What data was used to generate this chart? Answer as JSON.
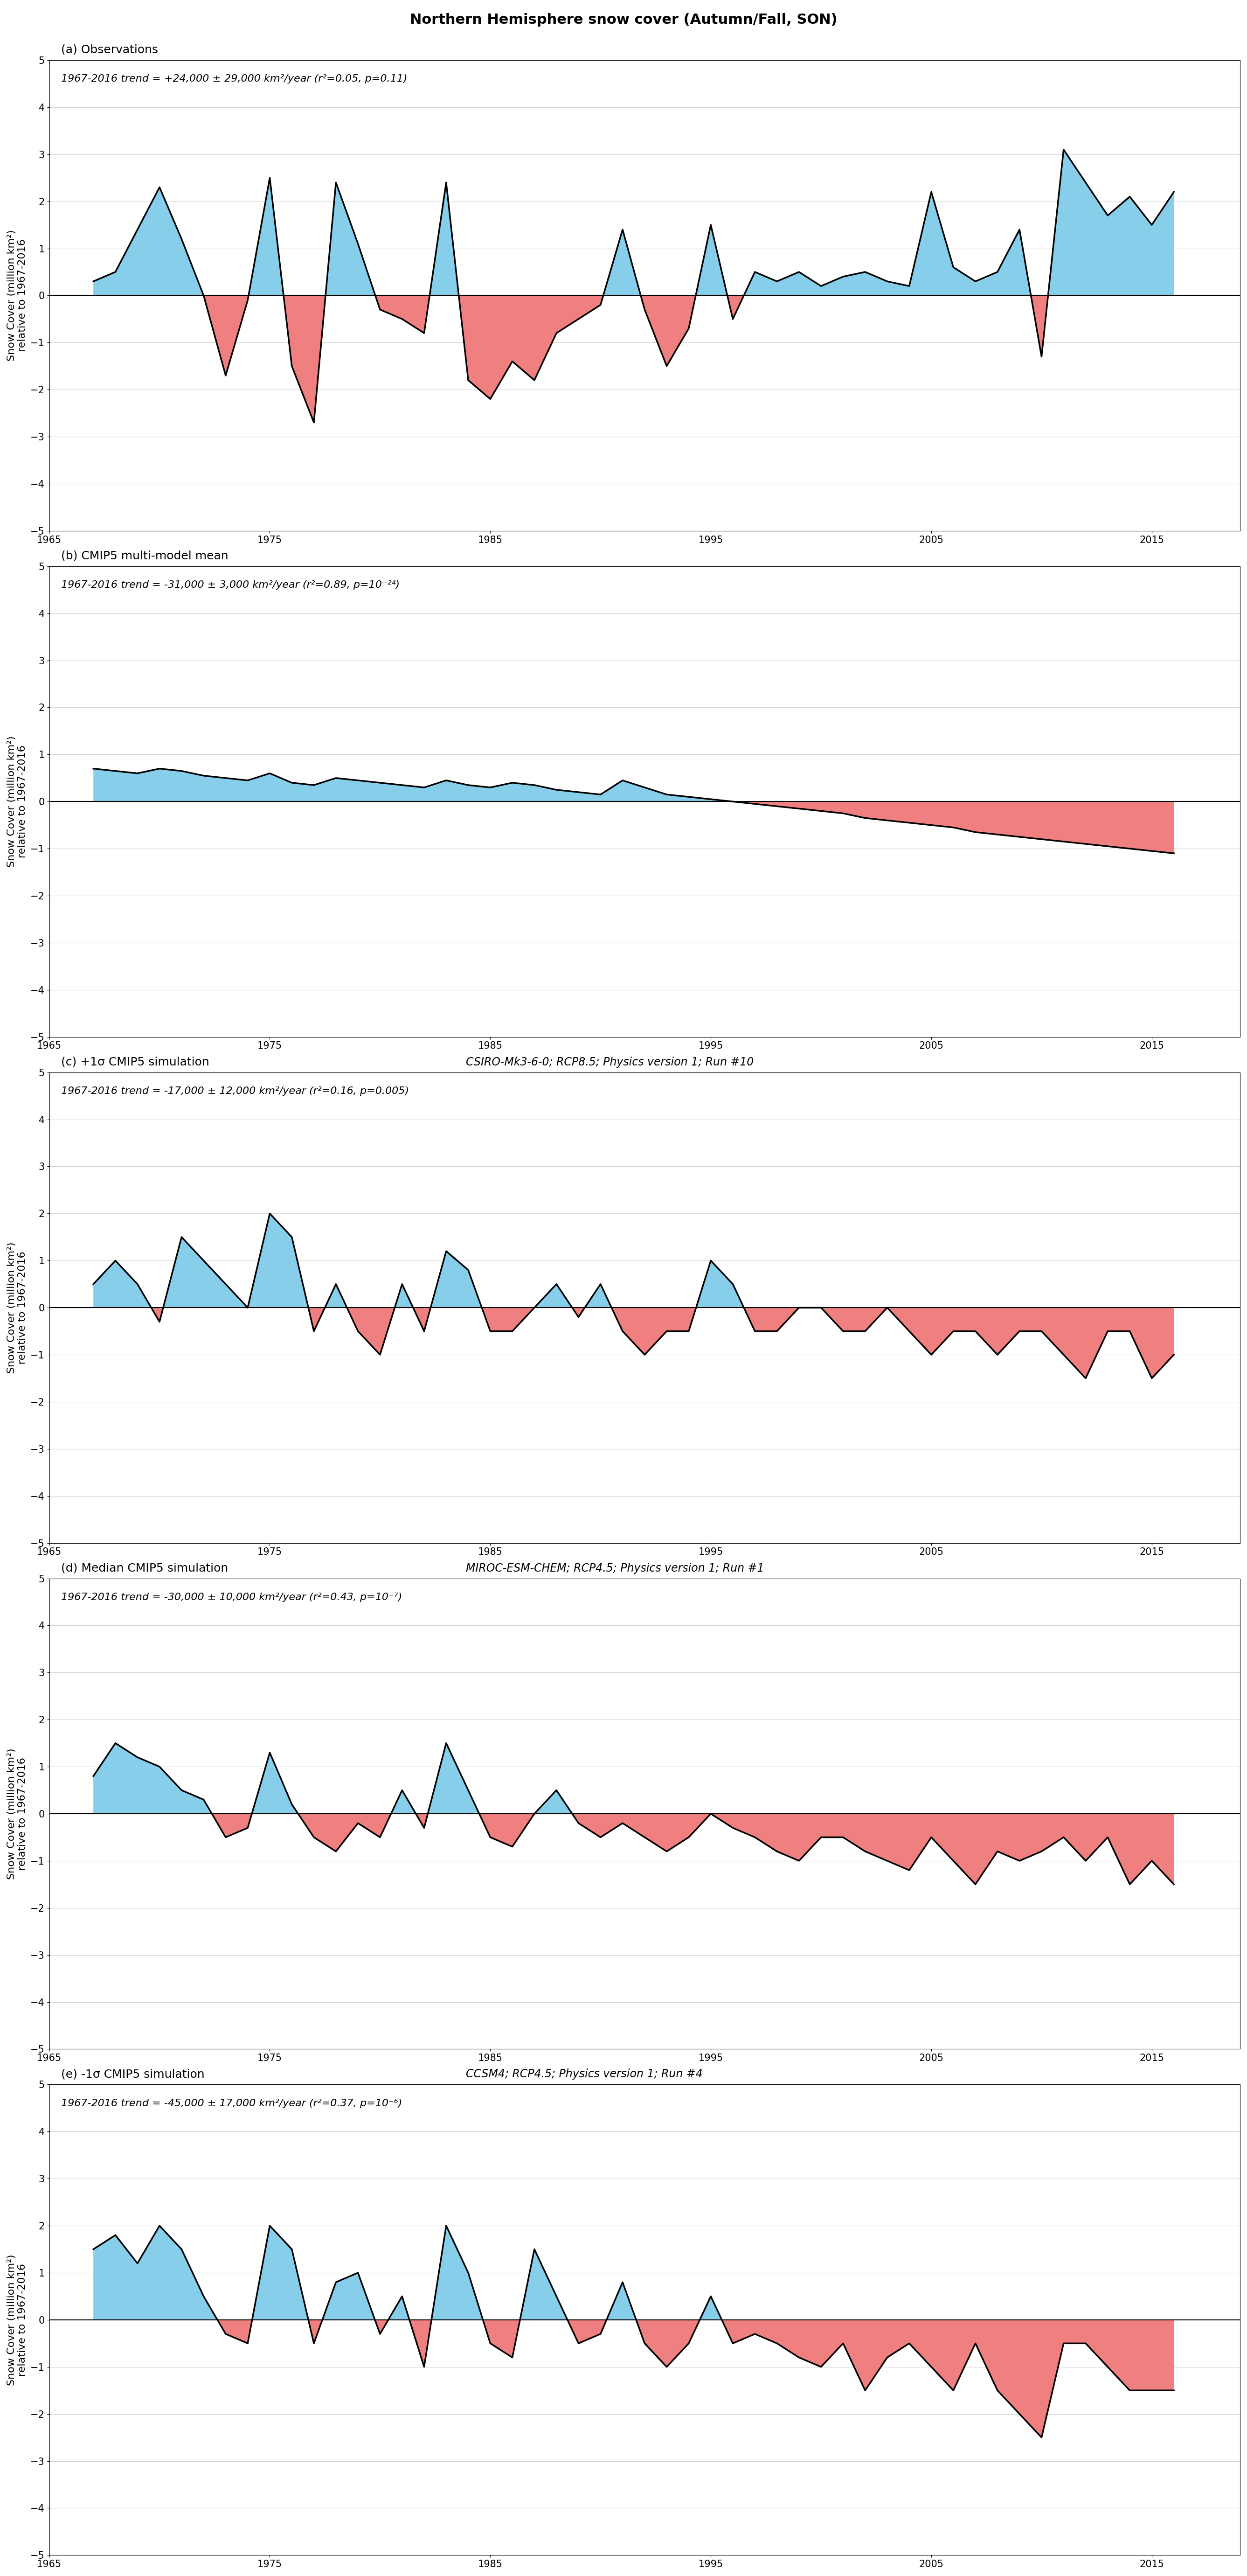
{
  "title": "Northern Hemisphere snow cover (Autumn/Fall, SON)",
  "title_fontsize": 22,
  "ylabel": "Snow Cover (million km²)\nrelative to 1967-2016",
  "ylabel_fontsize": 16,
  "xlabel_fontsize": 16,
  "tick_fontsize": 15,
  "xlim": [
    1965,
    2019
  ],
  "ylim": [
    -5,
    5
  ],
  "yticks": [
    -5,
    -4,
    -3,
    -2,
    -1,
    0,
    1,
    2,
    3,
    4,
    5
  ],
  "xticks": [
    1965,
    1975,
    1985,
    1995,
    2005,
    2015
  ],
  "color_pos": "#87CEEB",
  "color_neg": "#F08080",
  "line_color": "black",
  "line_width": 2.5,
  "panels": [
    {
      "label": "(a) Observations",
      "trend_text": "1967-2016 trend = +24,000 ± 29,000 km²/year (r²=0.05, p=0.11)",
      "model_text": "",
      "years": [
        1967,
        1968,
        1969,
        1970,
        1971,
        1972,
        1973,
        1974,
        1975,
        1976,
        1977,
        1978,
        1979,
        1980,
        1981,
        1982,
        1983,
        1984,
        1985,
        1986,
        1987,
        1988,
        1989,
        1990,
        1991,
        1992,
        1993,
        1994,
        1995,
        1996,
        1997,
        1998,
        1999,
        2000,
        2001,
        2002,
        2003,
        2004,
        2005,
        2006,
        2007,
        2008,
        2009,
        2010,
        2011,
        2012,
        2013,
        2014,
        2015,
        2016
      ],
      "values": [
        0.3,
        0.5,
        1.4,
        2.3,
        1.2,
        0.0,
        -1.7,
        -0.1,
        2.5,
        -1.5,
        -2.7,
        2.4,
        1.1,
        -0.3,
        -0.5,
        -0.8,
        2.4,
        -1.8,
        -2.2,
        -1.4,
        -1.8,
        -0.8,
        -0.5,
        -0.2,
        1.4,
        -0.3,
        -1.5,
        -0.7,
        1.5,
        -0.5,
        0.5,
        0.3,
        0.5,
        0.2,
        0.4,
        0.5,
        0.3,
        0.2,
        2.2,
        0.6,
        0.3,
        0.5,
        1.4,
        -1.3,
        3.1,
        2.4,
        1.7,
        2.1,
        1.5,
        2.2
      ]
    },
    {
      "label": "(b) CMIP5 multi-model mean",
      "trend_text": "1967-2016 trend = -31,000 ± 3,000 km²/year (r²=0.89, p=10⁻²⁴)",
      "model_text": "",
      "years": [
        1967,
        1968,
        1969,
        1970,
        1971,
        1972,
        1973,
        1974,
        1975,
        1976,
        1977,
        1978,
        1979,
        1980,
        1981,
        1982,
        1983,
        1984,
        1985,
        1986,
        1987,
        1988,
        1989,
        1990,
        1991,
        1992,
        1993,
        1994,
        1995,
        1996,
        1997,
        1998,
        1999,
        2000,
        2001,
        2002,
        2003,
        2004,
        2005,
        2006,
        2007,
        2008,
        2009,
        2010,
        2011,
        2012,
        2013,
        2014,
        2015,
        2016
      ],
      "values": [
        0.7,
        0.65,
        0.6,
        0.7,
        0.65,
        0.55,
        0.5,
        0.45,
        0.6,
        0.4,
        0.35,
        0.5,
        0.45,
        0.4,
        0.35,
        0.3,
        0.45,
        0.35,
        0.3,
        0.4,
        0.35,
        0.25,
        0.2,
        0.15,
        0.45,
        0.3,
        0.15,
        0.1,
        0.05,
        0.0,
        -0.05,
        -0.1,
        -0.15,
        -0.2,
        -0.25,
        -0.35,
        -0.4,
        -0.45,
        -0.5,
        -0.55,
        -0.65,
        -0.7,
        -0.75,
        -0.8,
        -0.85,
        -0.9,
        -0.95,
        -1.0,
        -1.05,
        -1.1
      ]
    },
    {
      "label": "(c) +1σ CMIP5 simulation",
      "trend_text": "1967-2016 trend = -17,000 ± 12,000 km²/year (r²=0.16, p=0.005)",
      "model_text": "CSIRO-Mk3-6-0; RCP8.5; Physics version 1; Run #10",
      "years": [
        1967,
        1968,
        1969,
        1970,
        1971,
        1972,
        1973,
        1974,
        1975,
        1976,
        1977,
        1978,
        1979,
        1980,
        1981,
        1982,
        1983,
        1984,
        1985,
        1986,
        1987,
        1988,
        1989,
        1990,
        1991,
        1992,
        1993,
        1994,
        1995,
        1996,
        1997,
        1998,
        1999,
        2000,
        2001,
        2002,
        2003,
        2004,
        2005,
        2006,
        2007,
        2008,
        2009,
        2010,
        2011,
        2012,
        2013,
        2014,
        2015,
        2016
      ],
      "values": [
        0.5,
        1.0,
        0.5,
        -0.3,
        1.5,
        1.0,
        0.5,
        0.0,
        2.0,
        1.5,
        -0.5,
        0.5,
        -0.5,
        -1.0,
        0.5,
        -0.5,
        1.2,
        0.8,
        -0.5,
        -0.5,
        0.0,
        0.5,
        -0.2,
        0.5,
        -0.5,
        -1.0,
        -0.5,
        -0.5,
        1.0,
        0.5,
        -0.5,
        -0.5,
        0.0,
        0.0,
        -0.5,
        -0.5,
        0.0,
        -0.5,
        -1.0,
        -0.5,
        -0.5,
        -1.0,
        -0.5,
        -0.5,
        -1.0,
        -1.5,
        -0.5,
        -0.5,
        -1.5,
        -1.0
      ]
    },
    {
      "label": "(d) Median CMIP5 simulation",
      "trend_text": "1967-2016 trend = -30,000 ± 10,000 km²/year (r²=0.43, p=10⁻⁷)",
      "model_text": "MIROC-ESM-CHEM; RCP4.5; Physics version 1; Run #1",
      "years": [
        1967,
        1968,
        1969,
        1970,
        1971,
        1972,
        1973,
        1974,
        1975,
        1976,
        1977,
        1978,
        1979,
        1980,
        1981,
        1982,
        1983,
        1984,
        1985,
        1986,
        1987,
        1988,
        1989,
        1990,
        1991,
        1992,
        1993,
        1994,
        1995,
        1996,
        1997,
        1998,
        1999,
        2000,
        2001,
        2002,
        2003,
        2004,
        2005,
        2006,
        2007,
        2008,
        2009,
        2010,
        2011,
        2012,
        2013,
        2014,
        2015,
        2016
      ],
      "values": [
        0.8,
        1.5,
        1.2,
        1.0,
        0.5,
        0.3,
        -0.5,
        -0.3,
        1.3,
        0.2,
        -0.5,
        -0.8,
        -0.2,
        -0.5,
        0.5,
        -0.3,
        1.5,
        0.5,
        -0.5,
        -0.7,
        0.0,
        0.5,
        -0.2,
        -0.5,
        -0.2,
        -0.5,
        -0.8,
        -0.5,
        0.0,
        -0.3,
        -0.5,
        -0.8,
        -1.0,
        -0.5,
        -0.5,
        -0.8,
        -1.0,
        -1.2,
        -0.5,
        -1.0,
        -1.5,
        -0.8,
        -1.0,
        -0.8,
        -0.5,
        -1.0,
        -0.5,
        -1.5,
        -1.0,
        -1.5
      ]
    },
    {
      "label": "(e) -1σ CMIP5 simulation",
      "trend_text": "1967-2016 trend = -45,000 ± 17,000 km²/year (r²=0.37, p=10⁻⁶)",
      "model_text": "CCSM4; RCP4.5; Physics version 1; Run #4",
      "years": [
        1967,
        1968,
        1969,
        1970,
        1971,
        1972,
        1973,
        1974,
        1975,
        1976,
        1977,
        1978,
        1979,
        1980,
        1981,
        1982,
        1983,
        1984,
        1985,
        1986,
        1987,
        1988,
        1989,
        1990,
        1991,
        1992,
        1993,
        1994,
        1995,
        1996,
        1997,
        1998,
        1999,
        2000,
        2001,
        2002,
        2003,
        2004,
        2005,
        2006,
        2007,
        2008,
        2009,
        2010,
        2011,
        2012,
        2013,
        2014,
        2015,
        2016
      ],
      "values": [
        1.5,
        1.8,
        1.2,
        2.0,
        1.5,
        0.5,
        -0.3,
        -0.5,
        2.0,
        1.5,
        -0.5,
        0.8,
        1.0,
        -0.3,
        0.5,
        -1.0,
        2.0,
        1.0,
        -0.5,
        -0.8,
        1.5,
        0.5,
        -0.5,
        -0.3,
        0.8,
        -0.5,
        -1.0,
        -0.5,
        0.5,
        -0.5,
        -0.3,
        -0.5,
        -0.8,
        -1.0,
        -0.5,
        -1.5,
        -0.8,
        -0.5,
        -1.0,
        -1.5,
        -0.5,
        -1.5,
        -2.0,
        -2.5,
        -0.5,
        -0.5,
        -1.0,
        -1.5,
        -1.5,
        -1.5
      ]
    }
  ]
}
